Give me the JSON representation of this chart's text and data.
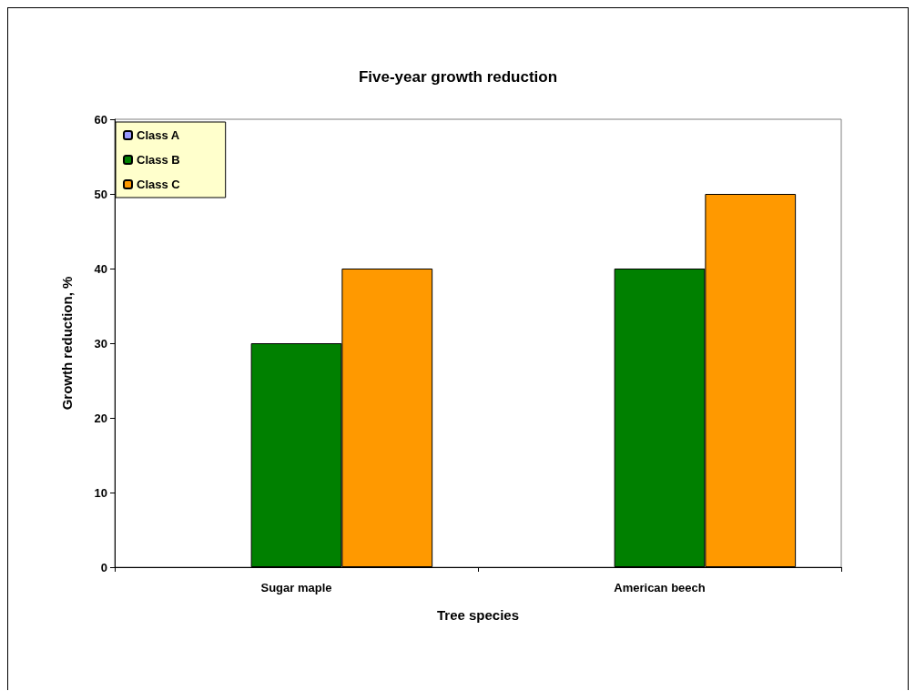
{
  "chart_data": {
    "type": "bar",
    "title": "Five-year growth reduction",
    "xlabel": "Tree species",
    "ylabel": "Growth reduction, %",
    "categories": [
      "Sugar maple",
      "American beech"
    ],
    "series": [
      {
        "name": "Class A",
        "color": "#9999ff",
        "values": [
          0,
          0
        ]
      },
      {
        "name": "Class B",
        "color": "#008000",
        "values": [
          30,
          40
        ]
      },
      {
        "name": "Class C",
        "color": "#ff9900",
        "values": [
          40,
          50
        ]
      }
    ],
    "ylim": [
      0,
      60
    ],
    "yticks": [
      0,
      10,
      20,
      30,
      40,
      50,
      60
    ],
    "grid": false,
    "legend": "top left"
  }
}
